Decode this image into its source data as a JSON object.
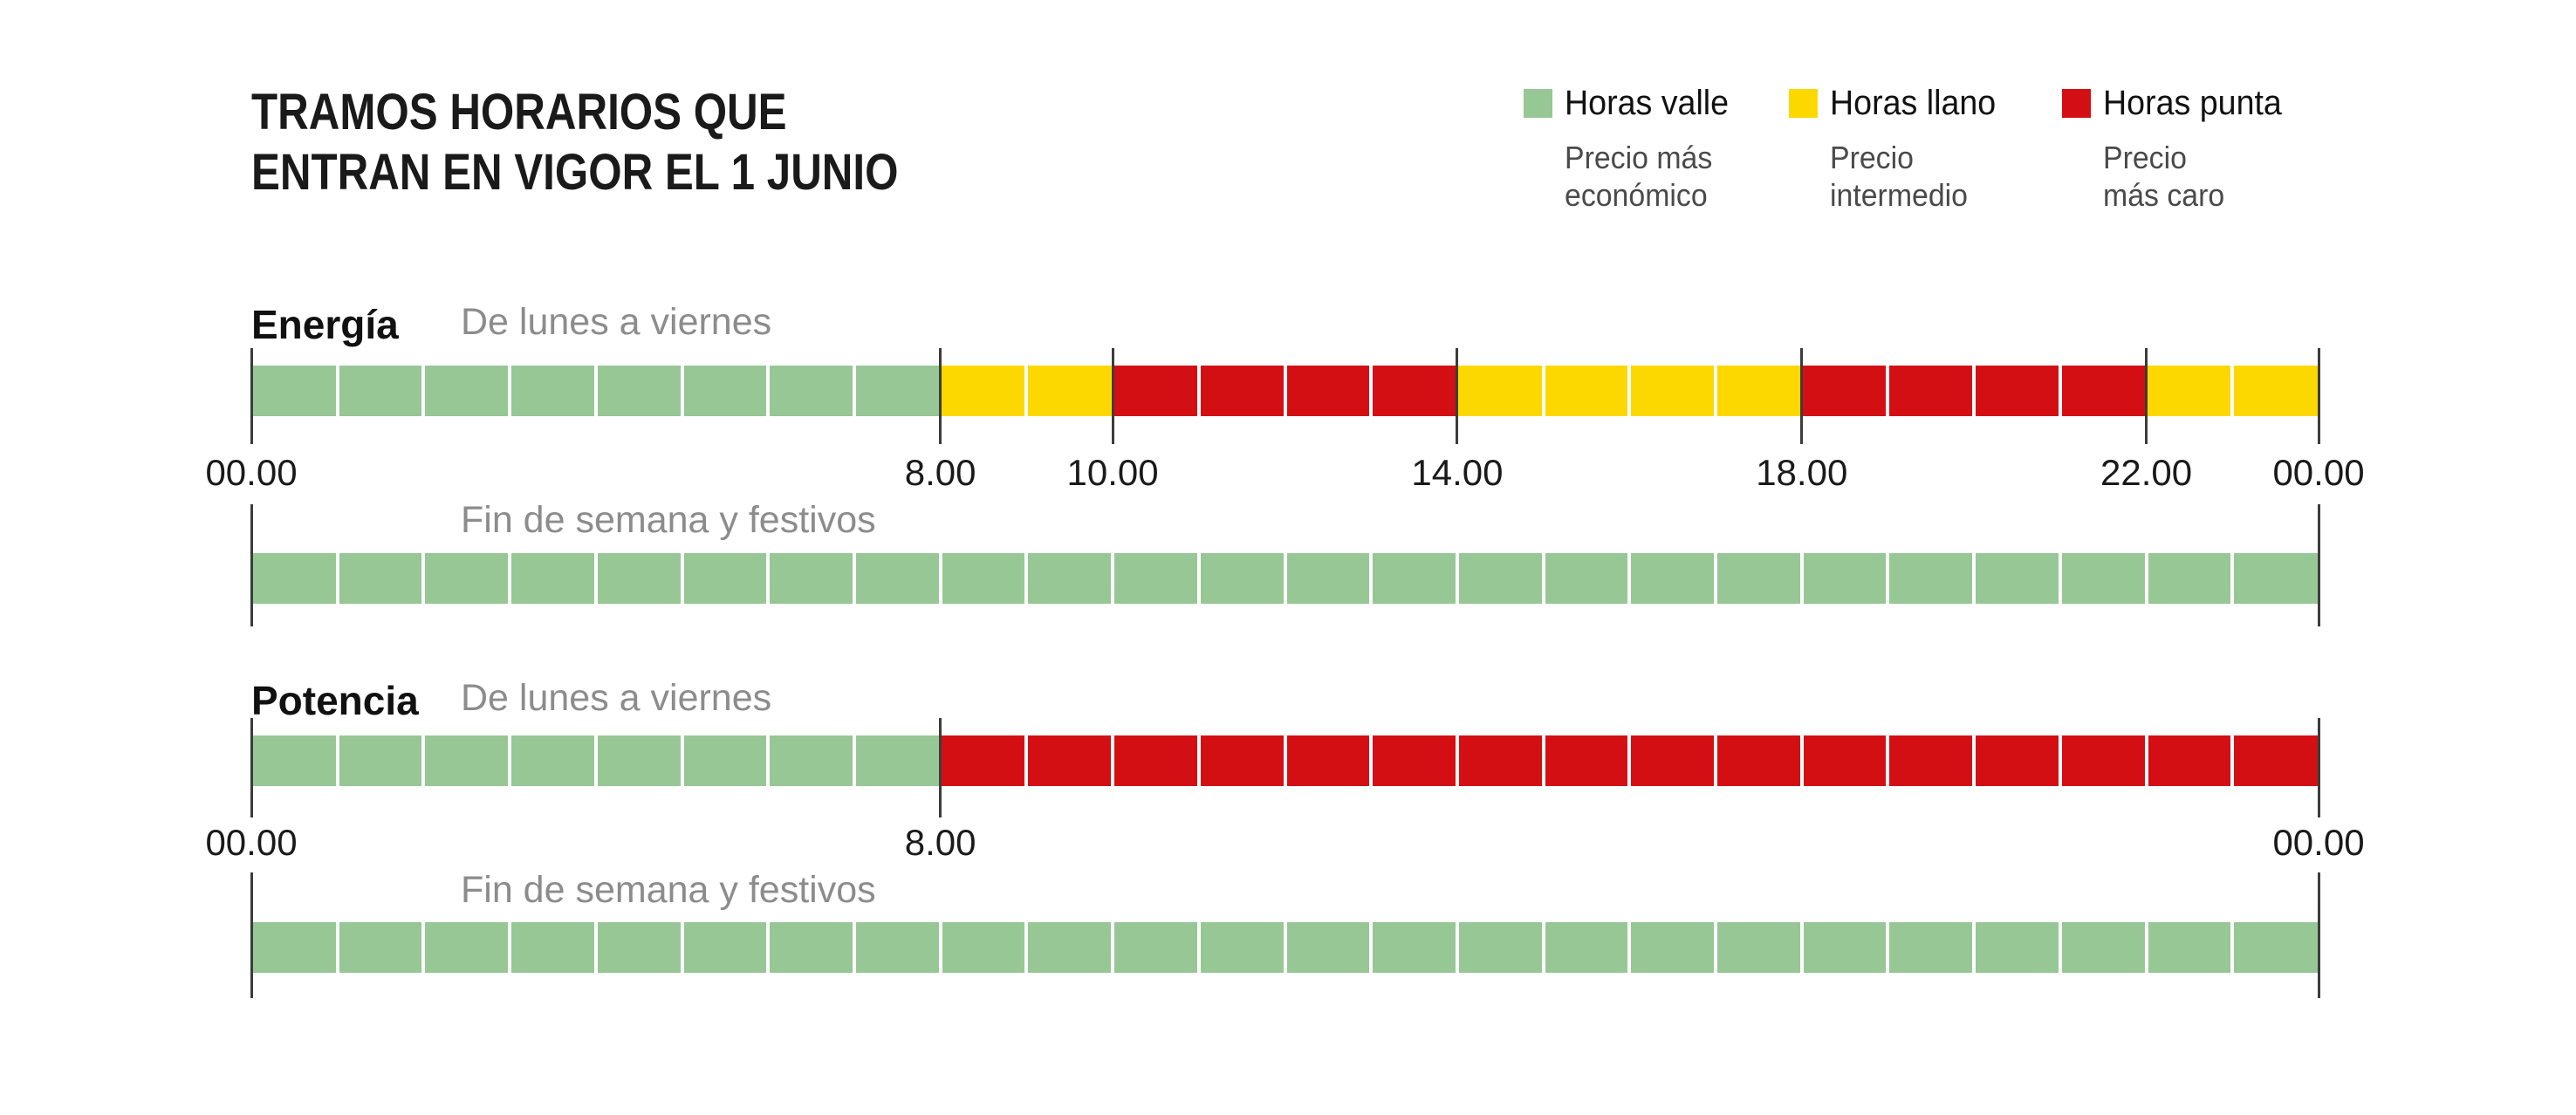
{
  "title": {
    "line1": "TRAMOS HORARIOS QUE",
    "line2": "ENTRAN EN VIGOR EL 1 JUNIO"
  },
  "legend": [
    {
      "key": "valle",
      "label": "Horas valle",
      "desc_line1": "Precio más",
      "desc_line2": "económico",
      "color": "#96C795"
    },
    {
      "key": "llano",
      "label": "Horas llano",
      "desc_line1": "Precio",
      "desc_line2": "intermedio",
      "color": "#FDD800"
    },
    {
      "key": "punta",
      "label": "Horas punta",
      "desc_line1": "Precio",
      "desc_line2": "más caro",
      "color": "#D40F14"
    }
  ],
  "chart_data": {
    "type": "bar",
    "subtype": "time-of-day-segmented-timelines",
    "hours_range": [
      0,
      24
    ],
    "category_colors": {
      "valle": "#96C795",
      "llano": "#FDD800",
      "punta": "#D40F14"
    },
    "category_labels": {
      "valle": "Horas valle",
      "llano": "Horas llano",
      "punta": "Horas punta"
    },
    "sections": [
      {
        "name": "Energía",
        "rows": [
          {
            "label": "De lunes a viernes",
            "segments": [
              {
                "from": 0,
                "to": 8,
                "category": "valle"
              },
              {
                "from": 8,
                "to": 10,
                "category": "llano"
              },
              {
                "from": 10,
                "to": 14,
                "category": "punta"
              },
              {
                "from": 14,
                "to": 18,
                "category": "llano"
              },
              {
                "from": 18,
                "to": 22,
                "category": "punta"
              },
              {
                "from": 22,
                "to": 24,
                "category": "llano"
              }
            ],
            "ticks": [
              0,
              8,
              10,
              14,
              18,
              22,
              24
            ],
            "tick_labels": [
              {
                "hour": 0,
                "text": "00.00"
              },
              {
                "hour": 8,
                "text": "8.00"
              },
              {
                "hour": 10,
                "text": "10.00"
              },
              {
                "hour": 14,
                "text": "14.00"
              },
              {
                "hour": 18,
                "text": "18.00"
              },
              {
                "hour": 22,
                "text": "22.00"
              },
              {
                "hour": 24,
                "text": "00.00"
              }
            ]
          },
          {
            "label": "Fin de semana y festivos",
            "segments": [
              {
                "from": 0,
                "to": 24,
                "category": "valle"
              }
            ],
            "ticks": [
              0,
              24
            ],
            "tick_labels": []
          }
        ]
      },
      {
        "name": "Potencia",
        "rows": [
          {
            "label": "De lunes a viernes",
            "segments": [
              {
                "from": 0,
                "to": 8,
                "category": "valle"
              },
              {
                "from": 8,
                "to": 24,
                "category": "punta"
              }
            ],
            "ticks": [
              0,
              8,
              24
            ],
            "tick_labels": [
              {
                "hour": 0,
                "text": "00.00"
              },
              {
                "hour": 8,
                "text": "8.00"
              },
              {
                "hour": 24,
                "text": "00.00"
              }
            ]
          },
          {
            "label": "Fin de semana y festivos",
            "segments": [
              {
                "from": 0,
                "to": 24,
                "category": "valle"
              }
            ],
            "ticks": [
              0,
              24
            ],
            "tick_labels": []
          }
        ]
      }
    ]
  }
}
